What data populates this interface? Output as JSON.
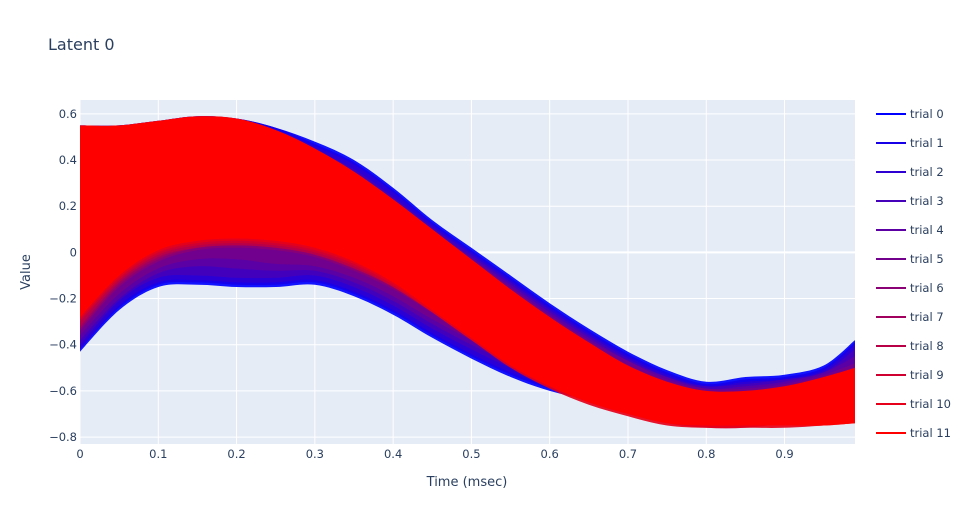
{
  "chart_data": {
    "type": "area",
    "title": "Latent 0",
    "xlabel": "Time (msec)",
    "ylabel": "Value",
    "xlim": [
      0,
      0.99
    ],
    "ylim": [
      -0.83,
      0.66
    ],
    "xticks": [
      0,
      0.1,
      0.2,
      0.3,
      0.4,
      0.5,
      0.6,
      0.7,
      0.8,
      0.9
    ],
    "xtick_labels": [
      "0",
      "0.1",
      "0.2",
      "0.3",
      "0.4",
      "0.5",
      "0.6",
      "0.7",
      "0.8",
      "0.9"
    ],
    "yticks": [
      0.6,
      0.4,
      0.2,
      0,
      -0.2,
      -0.4,
      -0.6,
      -0.8
    ],
    "ytick_labels": [
      "0.6",
      "0.4",
      "0.2",
      "0",
      "−0.2",
      "−0.4",
      "−0.6",
      "−0.8"
    ],
    "grid": true,
    "legend_position": "right",
    "plot_bg": "#e5ecf6",
    "x": [
      0,
      0.05,
      0.1,
      0.15,
      0.2,
      0.25,
      0.3,
      0.35,
      0.4,
      0.45,
      0.5,
      0.55,
      0.6,
      0.65,
      0.7,
      0.75,
      0.8,
      0.85,
      0.9,
      0.95,
      0.99
    ],
    "series": [
      {
        "name": "trial 0",
        "color": "#0000ff",
        "lower": [
          -0.43,
          -0.25,
          -0.15,
          -0.14,
          -0.15,
          -0.15,
          -0.14,
          -0.19,
          -0.27,
          -0.37,
          -0.46,
          -0.54,
          -0.6,
          -0.64,
          -0.68,
          -0.73,
          -0.75,
          -0.73,
          -0.71,
          -0.65,
          -0.55
        ],
        "upper": [
          0.55,
          0.55,
          0.57,
          0.59,
          0.58,
          0.54,
          0.48,
          0.4,
          0.28,
          0.14,
          0.02,
          -0.1,
          -0.22,
          -0.33,
          -0.43,
          -0.51,
          -0.56,
          -0.54,
          -0.53,
          -0.49,
          -0.38
        ]
      },
      {
        "name": "trial 1",
        "color": "#1700e8",
        "lower": [
          -0.42,
          -0.24,
          -0.14,
          -0.13,
          -0.14,
          -0.14,
          -0.13,
          -0.18,
          -0.26,
          -0.36,
          -0.45,
          -0.53,
          -0.59,
          -0.63,
          -0.67,
          -0.72,
          -0.74,
          -0.72,
          -0.7,
          -0.64,
          -0.55
        ],
        "upper": [
          0.55,
          0.55,
          0.57,
          0.59,
          0.58,
          0.54,
          0.47,
          0.39,
          0.27,
          0.13,
          0.01,
          -0.11,
          -0.23,
          -0.34,
          -0.44,
          -0.52,
          -0.57,
          -0.55,
          -0.54,
          -0.5,
          -0.39
        ]
      },
      {
        "name": "trial 2",
        "color": "#2e00d1",
        "lower": [
          -0.42,
          -0.23,
          -0.13,
          -0.12,
          -0.13,
          -0.13,
          -0.12,
          -0.17,
          -0.25,
          -0.35,
          -0.44,
          -0.52,
          -0.58,
          -0.62,
          -0.66,
          -0.71,
          -0.73,
          -0.72,
          -0.7,
          -0.64,
          -0.56
        ],
        "upper": [
          0.54,
          0.55,
          0.56,
          0.58,
          0.57,
          0.53,
          0.46,
          0.38,
          0.26,
          0.12,
          0.0,
          -0.12,
          -0.24,
          -0.35,
          -0.45,
          -0.53,
          -0.58,
          -0.56,
          -0.55,
          -0.51,
          -0.4
        ]
      },
      {
        "name": "trial 3",
        "color": "#4500ba",
        "lower": [
          -0.4,
          -0.21,
          -0.11,
          -0.1,
          -0.11,
          -0.11,
          -0.1,
          -0.15,
          -0.23,
          -0.33,
          -0.42,
          -0.5,
          -0.56,
          -0.61,
          -0.65,
          -0.7,
          -0.72,
          -0.71,
          -0.69,
          -0.64,
          -0.57
        ],
        "upper": [
          0.5,
          0.5,
          0.5,
          0.52,
          0.52,
          0.49,
          0.44,
          0.36,
          0.24,
          0.11,
          -0.01,
          -0.13,
          -0.25,
          -0.36,
          -0.46,
          -0.54,
          -0.58,
          -0.57,
          -0.55,
          -0.52,
          -0.42
        ]
      },
      {
        "name": "trial 4",
        "color": "#5c00a3",
        "lower": [
          -0.38,
          -0.2,
          -0.09,
          -0.06,
          -0.07,
          -0.08,
          -0.08,
          -0.13,
          -0.21,
          -0.31,
          -0.4,
          -0.48,
          -0.55,
          -0.6,
          -0.64,
          -0.69,
          -0.71,
          -0.7,
          -0.68,
          -0.63,
          -0.58
        ],
        "upper": [
          0.45,
          0.46,
          0.47,
          0.49,
          0.48,
          0.45,
          0.4,
          0.33,
          0.22,
          0.09,
          -0.02,
          -0.14,
          -0.26,
          -0.37,
          -0.47,
          -0.54,
          -0.59,
          -0.58,
          -0.56,
          -0.52,
          -0.45
        ]
      },
      {
        "name": "trial 5",
        "color": "#73008c",
        "lower": [
          -0.36,
          -0.18,
          -0.07,
          -0.03,
          -0.03,
          -0.05,
          -0.06,
          -0.11,
          -0.19,
          -0.29,
          -0.38,
          -0.46,
          -0.54,
          -0.6,
          -0.64,
          -0.68,
          -0.7,
          -0.69,
          -0.67,
          -0.63,
          -0.6
        ],
        "upper": [
          0.4,
          0.41,
          0.43,
          0.45,
          0.44,
          0.42,
          0.37,
          0.3,
          0.2,
          0.08,
          -0.03,
          -0.15,
          -0.27,
          -0.38,
          -0.47,
          -0.55,
          -0.59,
          -0.59,
          -0.57,
          -0.53,
          -0.48
        ]
      },
      {
        "name": "trial 6",
        "color": "#8a0075",
        "lower": [
          -0.34,
          -0.15,
          -0.04,
          0.01,
          0.02,
          0.01,
          -0.02,
          -0.08,
          -0.16,
          -0.26,
          -0.36,
          -0.45,
          -0.53,
          -0.6,
          -0.65,
          -0.69,
          -0.71,
          -0.7,
          -0.68,
          -0.64,
          -0.62
        ],
        "upper": [
          0.35,
          0.37,
          0.39,
          0.41,
          0.4,
          0.38,
          0.33,
          0.26,
          0.17,
          0.06,
          -0.05,
          -0.17,
          -0.29,
          -0.4,
          -0.49,
          -0.56,
          -0.6,
          -0.6,
          -0.58,
          -0.55,
          -0.52
        ]
      },
      {
        "name": "trial 7",
        "color": "#a1005e",
        "lower": [
          -0.33,
          -0.14,
          -0.03,
          0.02,
          0.03,
          0.02,
          -0.01,
          -0.07,
          -0.15,
          -0.25,
          -0.35,
          -0.45,
          -0.54,
          -0.62,
          -0.67,
          -0.71,
          -0.73,
          -0.72,
          -0.7,
          -0.66,
          -0.64
        ],
        "upper": [
          0.2,
          0.28,
          0.33,
          0.37,
          0.38,
          0.36,
          0.31,
          0.24,
          0.15,
          0.04,
          -0.08,
          -0.2,
          -0.32,
          -0.43,
          -0.52,
          -0.58,
          -0.62,
          -0.62,
          -0.6,
          -0.57,
          -0.55
        ]
      },
      {
        "name": "trial 8",
        "color": "#b80047",
        "lower": [
          -0.32,
          -0.13,
          -0.02,
          0.02,
          0.03,
          0.02,
          -0.01,
          -0.07,
          -0.15,
          -0.26,
          -0.37,
          -0.47,
          -0.56,
          -0.64,
          -0.69,
          -0.73,
          -0.75,
          -0.74,
          -0.72,
          -0.69,
          -0.66
        ],
        "upper": [
          0.1,
          0.22,
          0.3,
          0.36,
          0.38,
          0.37,
          0.33,
          0.26,
          0.16,
          0.04,
          -0.09,
          -0.22,
          -0.34,
          -0.45,
          -0.54,
          -0.6,
          -0.64,
          -0.64,
          -0.62,
          -0.59,
          -0.57
        ]
      },
      {
        "name": "trial 9",
        "color": "#cf0030",
        "lower": [
          -0.3,
          -0.12,
          -0.01,
          0.03,
          0.04,
          0.03,
          0.0,
          -0.06,
          -0.15,
          -0.26,
          -0.38,
          -0.49,
          -0.58,
          -0.65,
          -0.7,
          -0.74,
          -0.76,
          -0.76,
          -0.74,
          -0.72,
          -0.7
        ],
        "upper": [
          0.05,
          0.19,
          0.29,
          0.36,
          0.39,
          0.39,
          0.36,
          0.3,
          0.2,
          0.07,
          -0.07,
          -0.21,
          -0.34,
          -0.46,
          -0.55,
          -0.61,
          -0.65,
          -0.66,
          -0.64,
          -0.61,
          -0.58
        ]
      },
      {
        "name": "trial 10",
        "color": "#e60019",
        "lower": [
          -0.29,
          -0.11,
          0.0,
          0.04,
          0.05,
          0.04,
          0.01,
          -0.05,
          -0.14,
          -0.26,
          -0.38,
          -0.5,
          -0.59,
          -0.66,
          -0.71,
          -0.75,
          -0.76,
          -0.76,
          -0.76,
          -0.75,
          -0.74
        ],
        "upper": [
          0.0,
          0.17,
          0.29,
          0.37,
          0.4,
          0.4,
          0.37,
          0.31,
          0.21,
          0.08,
          -0.06,
          -0.2,
          -0.33,
          -0.45,
          -0.54,
          -0.6,
          -0.63,
          -0.64,
          -0.62,
          -0.59,
          -0.56
        ]
      },
      {
        "name": "trial 11",
        "color": "#ff0000",
        "lower": [
          -0.28,
          -0.1,
          0.01,
          0.05,
          0.06,
          0.05,
          0.02,
          -0.04,
          -0.13,
          -0.25,
          -0.37,
          -0.49,
          -0.58,
          -0.65,
          -0.7,
          -0.74,
          -0.75,
          -0.75,
          -0.75,
          -0.75,
          -0.74
        ],
        "upper": [
          0.55,
          0.55,
          0.57,
          0.59,
          0.58,
          0.53,
          0.45,
          0.35,
          0.23,
          0.1,
          -0.03,
          -0.16,
          -0.28,
          -0.39,
          -0.49,
          -0.56,
          -0.6,
          -0.6,
          -0.58,
          -0.54,
          -0.5
        ]
      }
    ]
  }
}
